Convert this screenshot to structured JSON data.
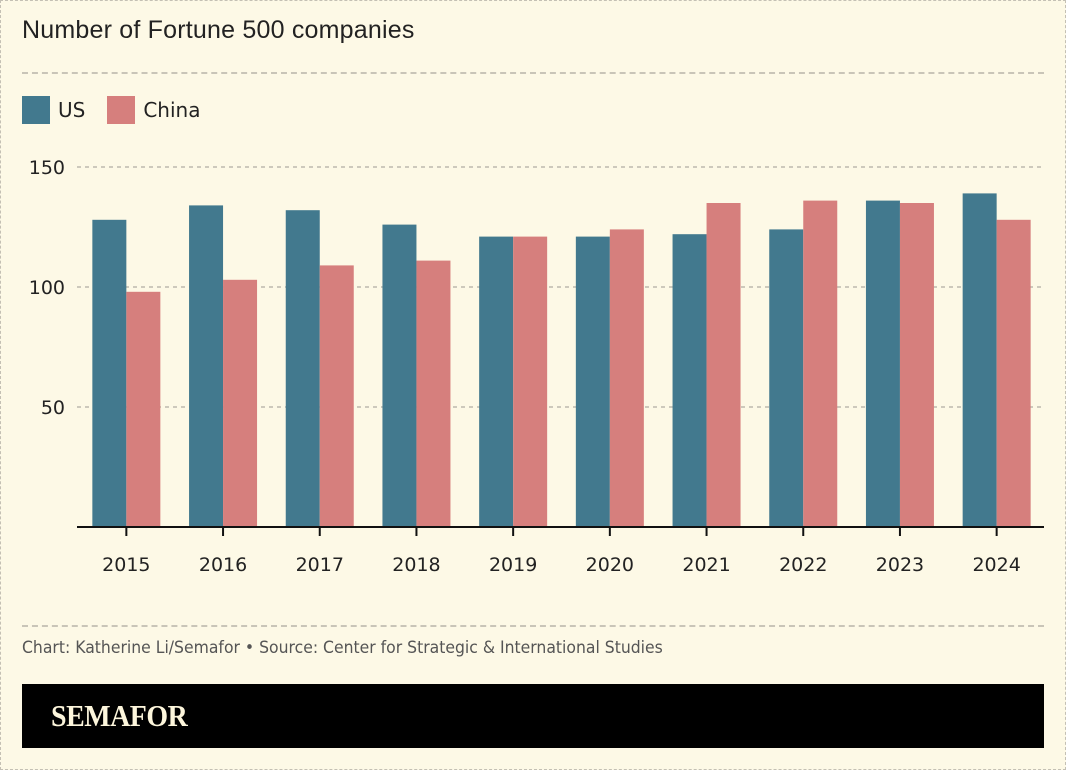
{
  "chart_data": {
    "type": "bar",
    "title": "Number of Fortune 500 companies",
    "xlabel": "",
    "ylabel": "",
    "categories": [
      "2015",
      "2016",
      "2017",
      "2018",
      "2019",
      "2020",
      "2021",
      "2022",
      "2023",
      "2024"
    ],
    "series": [
      {
        "name": "US",
        "color": "#42798e",
        "values": [
          128,
          134,
          132,
          126,
          121,
          121,
          122,
          124,
          136,
          139
        ]
      },
      {
        "name": "China",
        "color": "#d67f7d",
        "values": [
          98,
          103,
          109,
          111,
          121,
          124,
          135,
          136,
          135,
          128
        ]
      }
    ],
    "ylim": [
      0,
      150
    ],
    "yticks": [
      50,
      100,
      150
    ],
    "grid": true,
    "legend": "top-left"
  },
  "footer": {
    "credit": "Chart: Katherine Li/Semafor • Source: Center for Strategic & International Studies",
    "brand": "SEMAFOR"
  }
}
